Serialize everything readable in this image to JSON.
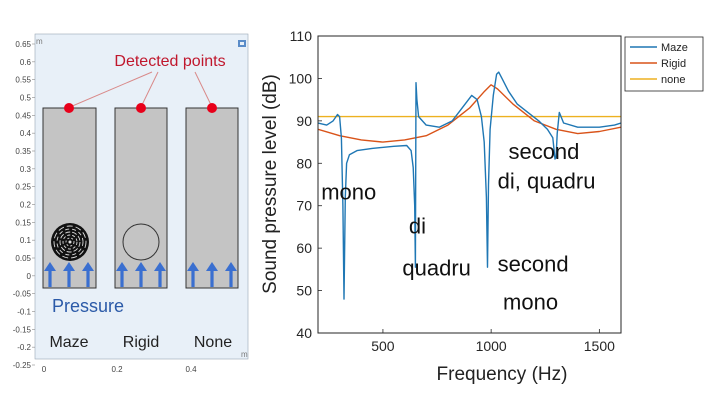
{
  "left_panel": {
    "unit_top": "m",
    "unit_bottom": "m",
    "y_ticks": [
      "0.65",
      "0.6",
      "0.55",
      "0.5",
      "0.45",
      "0.4",
      "0.35",
      "0.3",
      "0.25",
      "0.2",
      "0.15",
      "0.1",
      "0.05",
      "0",
      "-0.05",
      "-0.1",
      "-0.15",
      "-0.2",
      "-0.25"
    ],
    "x_ticks": [
      "0",
      "0.2",
      "0.4"
    ],
    "detected_label": "Detected points",
    "pressure_label": "Pressure",
    "cases": [
      "Maze",
      "Rigid",
      "None"
    ],
    "colors": {
      "bg": "#e8f0f8",
      "tube": "#c4c4c4",
      "dot": "#e8001a",
      "arrow": "#3a6fd0",
      "detected": "#c0172d",
      "pressure": "#2b5aa8"
    }
  },
  "chart_data": {
    "type": "line",
    "xlabel": "Frequency (Hz)",
    "ylabel": "Sound pressure level (dB)",
    "xlim": [
      200,
      1600
    ],
    "ylim": [
      40,
      110
    ],
    "x_ticks": [
      500,
      1000,
      1500
    ],
    "y_ticks": [
      40,
      50,
      60,
      70,
      80,
      90,
      100,
      110
    ],
    "grid": false,
    "legend_position": "top-right (outside)",
    "series": [
      {
        "name": "Maze",
        "color": "#1f77b4",
        "points": [
          [
            200,
            89.5
          ],
          [
            240,
            89
          ],
          [
            270,
            90
          ],
          [
            290,
            91.5
          ],
          [
            300,
            91
          ],
          [
            308,
            86
          ],
          [
            315,
            70
          ],
          [
            320,
            48
          ],
          [
            326,
            72
          ],
          [
            332,
            80
          ],
          [
            345,
            82
          ],
          [
            380,
            83
          ],
          [
            450,
            83.5
          ],
          [
            550,
            84
          ],
          [
            610,
            84.2
          ],
          [
            630,
            83
          ],
          [
            640,
            79
          ],
          [
            647,
            70
          ],
          [
            650,
            55.5
          ],
          [
            653,
            99
          ],
          [
            657,
            95
          ],
          [
            665,
            91
          ],
          [
            700,
            89
          ],
          [
            760,
            88.5
          ],
          [
            820,
            90
          ],
          [
            880,
            94
          ],
          [
            910,
            96
          ],
          [
            935,
            95
          ],
          [
            955,
            91
          ],
          [
            968,
            85
          ],
          [
            978,
            72
          ],
          [
            983,
            55.5
          ],
          [
            988,
            75
          ],
          [
            995,
            88
          ],
          [
            1010,
            96
          ],
          [
            1025,
            101
          ],
          [
            1035,
            101.5
          ],
          [
            1050,
            100
          ],
          [
            1080,
            97
          ],
          [
            1120,
            94
          ],
          [
            1170,
            92
          ],
          [
            1220,
            90
          ],
          [
            1260,
            88
          ],
          [
            1285,
            86
          ],
          [
            1295,
            81
          ],
          [
            1300,
            81.5
          ],
          [
            1305,
            87
          ],
          [
            1315,
            92
          ],
          [
            1335,
            89.5
          ],
          [
            1400,
            88.5
          ],
          [
            1500,
            88.5
          ],
          [
            1570,
            89
          ],
          [
            1600,
            89.5
          ]
        ]
      },
      {
        "name": "Rigid",
        "color": "#d95319",
        "points": [
          [
            200,
            88
          ],
          [
            300,
            86.5
          ],
          [
            400,
            85.5
          ],
          [
            500,
            85
          ],
          [
            600,
            85.5
          ],
          [
            700,
            86.5
          ],
          [
            800,
            89
          ],
          [
            900,
            93
          ],
          [
            970,
            97
          ],
          [
            1000,
            98.5
          ],
          [
            1030,
            97.5
          ],
          [
            1100,
            94
          ],
          [
            1200,
            90
          ],
          [
            1300,
            88
          ],
          [
            1400,
            87
          ],
          [
            1500,
            87.5
          ],
          [
            1600,
            88.5
          ]
        ]
      },
      {
        "name": "none",
        "color": "#edb120",
        "points": [
          [
            200,
            91
          ],
          [
            1600,
            91
          ]
        ]
      }
    ],
    "annotations": [
      {
        "text": "mono",
        "x": 215,
        "y": 71.5
      },
      {
        "text": "di",
        "x": 620,
        "y": 63.5
      },
      {
        "text": "quadru",
        "x": 590,
        "y": 53.5
      },
      {
        "text": "second",
        "x": 1030,
        "y": 54.5
      },
      {
        "text": "mono",
        "x": 1055,
        "y": 45.5
      },
      {
        "text": "second",
        "x": 1080,
        "y": 81
      },
      {
        "text": "di, quadru",
        "x": 1030,
        "y": 74
      }
    ]
  }
}
